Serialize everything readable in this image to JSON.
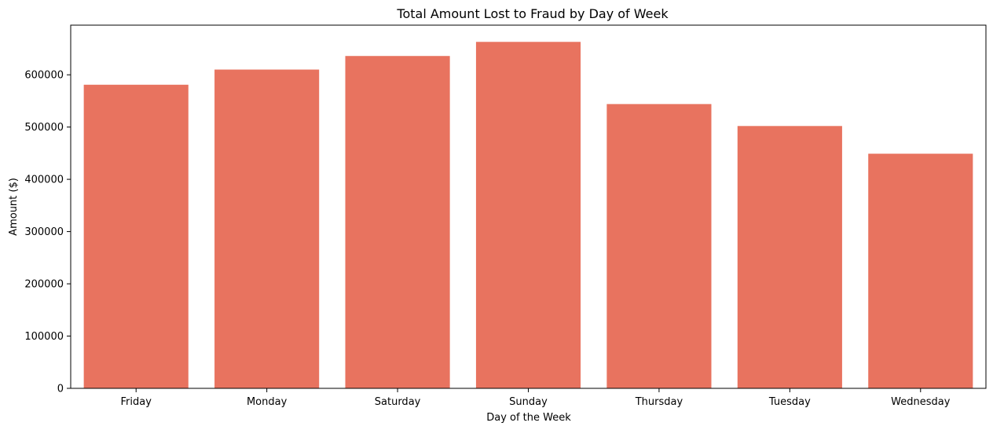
{
  "chart_data": {
    "type": "bar",
    "title": "Total Amount Lost to Fraud by Day of Week",
    "xlabel": "Day of the Week",
    "ylabel": "Amount ($)",
    "categories": [
      "Friday",
      "Monday",
      "Saturday",
      "Sunday",
      "Thursday",
      "Tuesday",
      "Wednesday"
    ],
    "values": [
      581000,
      610000,
      636000,
      663000,
      544000,
      502000,
      449000
    ],
    "ylim": [
      0,
      695000
    ],
    "yticks": [
      0,
      100000,
      200000,
      300000,
      400000,
      500000,
      600000
    ],
    "ytick_labels": [
      "0",
      "100000",
      "200000",
      "300000",
      "400000",
      "500000",
      "600000"
    ],
    "grid": false,
    "bar_color": "#e8735f"
  }
}
